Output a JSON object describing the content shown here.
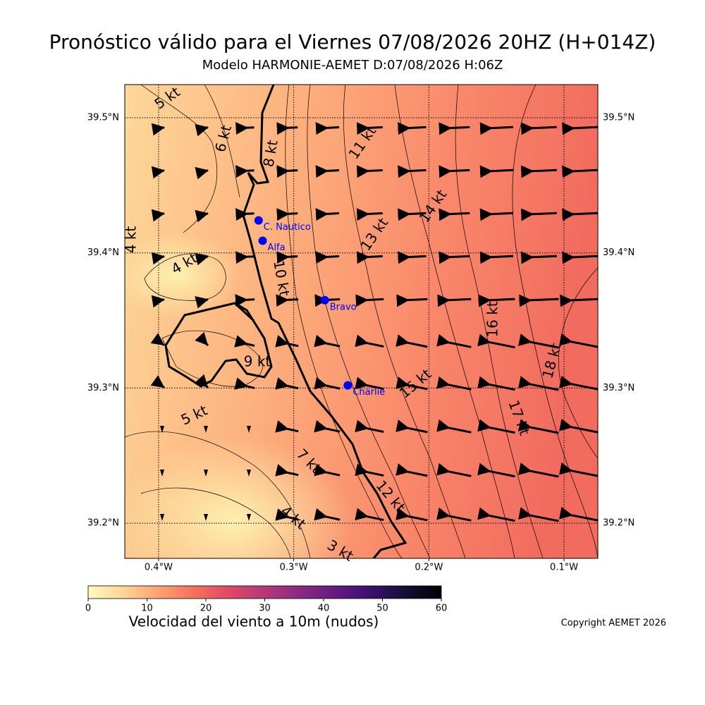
{
  "map": {
    "title": "Pronóstico válido para el Viernes 07/08/2026 20HZ (H+014Z)",
    "subtitle": "Modelo HARMONIE-AEMET D:07/08/2026 H:06Z",
    "xlim": [
      -0.425,
      -0.075
    ],
    "ylim": [
      39.174,
      39.5245
    ],
    "lon_ticks": [
      {
        "value": -0.4,
        "label": "0.4°W"
      },
      {
        "value": -0.3,
        "label": "0.3°W"
      },
      {
        "value": -0.2,
        "label": "0.2°W"
      },
      {
        "value": -0.1,
        "label": "0.1°W"
      }
    ],
    "lat_ticks": [
      {
        "value": 39.2,
        "label": "39.2°N"
      },
      {
        "value": 39.3,
        "label": "39.3°N"
      },
      {
        "value": 39.4,
        "label": "39.4°N"
      },
      {
        "value": 39.5,
        "label": "39.5°N"
      }
    ],
    "stations": [
      {
        "name": "C. Nautico",
        "lon": -0.326,
        "lat": 39.424
      },
      {
        "name": "Alfa",
        "lon": -0.323,
        "lat": 39.409
      },
      {
        "name": "Bravo",
        "lon": -0.277,
        "lat": 39.365
      },
      {
        "name": "Charlie",
        "lon": -0.26,
        "lat": 39.302
      }
    ],
    "contour_labels": [
      "5 kt",
      "6 kt",
      "8 kt",
      "11 kt",
      "14 kt",
      "13 kt",
      "4 kt",
      "4 kt",
      "10 kt",
      "16 kt",
      "18 kt",
      "9 kt",
      "15 kt",
      "17 kt",
      "5 kt",
      "7 kt",
      "12 kt",
      "4 kt",
      "3 kt"
    ],
    "colorbar": {
      "label": "Velocidad del viento a 10m (nudos)",
      "lim": [
        0,
        60
      ],
      "ticks": [
        0,
        10,
        20,
        30,
        40,
        50,
        60
      ]
    },
    "copyright": "Copyright AEMET 2026"
  }
}
